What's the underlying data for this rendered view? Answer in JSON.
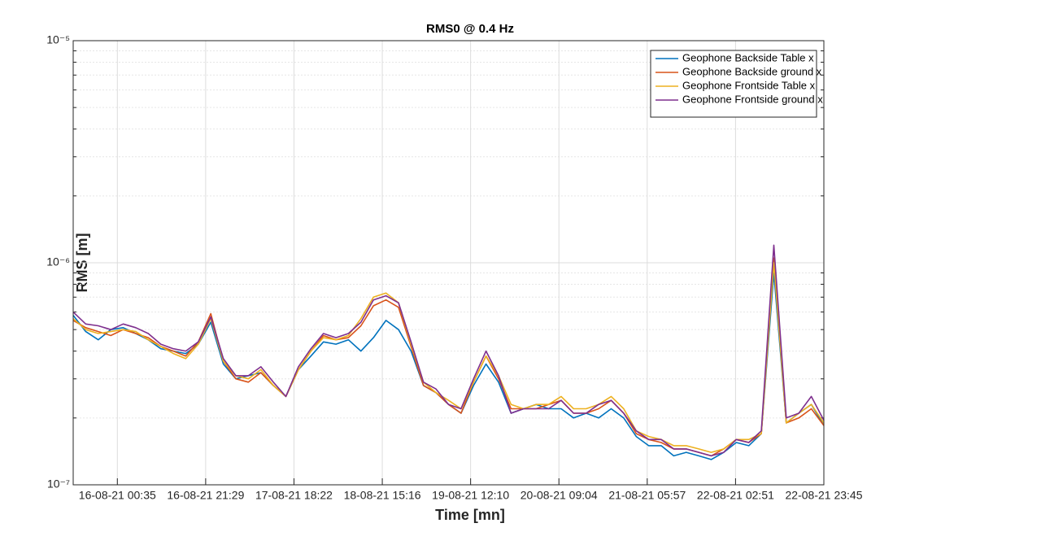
{
  "chart_data": {
    "type": "line",
    "title": "RMS0 @ 0.4 Hz",
    "xlabel": "Time [mn]",
    "ylabel": "RMS [m]",
    "ylog": true,
    "grid": true,
    "minor_grid": true,
    "legend": "upper right",
    "xlim": [
      -0.5,
      8
    ],
    "xticks": [
      {
        "value": 0,
        "label": "16-08-21 00:35"
      },
      {
        "value": 1,
        "label": "16-08-21 21:29"
      },
      {
        "value": 2,
        "label": "17-08-21 18:22"
      },
      {
        "value": 3,
        "label": "18-08-21 15:16"
      },
      {
        "value": 4,
        "label": "19-08-21 12:10"
      },
      {
        "value": 5,
        "label": "20-08-21 09:04"
      },
      {
        "value": 6,
        "label": "21-08-21 05:57"
      },
      {
        "value": 7,
        "label": "22-08-21 02:51"
      },
      {
        "value": 8,
        "label": "22-08-21 23:45"
      }
    ],
    "ylim": [
      1e-07,
      1e-05
    ],
    "yticks": [
      {
        "value": 1e-07,
        "label": "10⁻⁷"
      },
      {
        "value": 1e-06,
        "label": "10⁻⁶"
      },
      {
        "value": 1e-05,
        "label": "10⁻⁵"
      }
    ],
    "series": [
      {
        "name": "Geophone Backside Table x",
        "color": "#0072bd",
        "values": [
          5.8e-07,
          4.9e-07,
          4.5e-07,
          5e-07,
          5.1e-07,
          4.8e-07,
          4.5e-07,
          4.1e-07,
          4e-07,
          3.9e-07,
          4.3e-07,
          5.4e-07,
          3.5e-07,
          3e-07,
          3.1e-07,
          3.2e-07,
          2.8e-07,
          2.5e-07,
          3.3e-07,
          3.8e-07,
          4.4e-07,
          4.3e-07,
          4.5e-07,
          4e-07,
          4.6e-07,
          5.5e-07,
          5e-07,
          4e-07,
          2.8e-07,
          2.6e-07,
          2.3e-07,
          2.1e-07,
          2.8e-07,
          3.5e-07,
          2.9e-07,
          2.1e-07,
          2.2e-07,
          2.3e-07,
          2.2e-07,
          2.2e-07,
          2e-07,
          2.1e-07,
          2e-07,
          2.2e-07,
          2e-07,
          1.65e-07,
          1.5e-07,
          1.5e-07,
          1.35e-07,
          1.4e-07,
          1.35e-07,
          1.3e-07,
          1.4e-07,
          1.55e-07,
          1.5e-07,
          1.7e-07,
          9e-07,
          1.9e-07,
          2.1e-07,
          2.3e-07,
          1.85e-07
        ]
      },
      {
        "name": "Geophone Backside ground x",
        "color": "#d95319",
        "values": [
          5.5e-07,
          5.1e-07,
          4.9e-07,
          4.7e-07,
          5e-07,
          4.8e-07,
          4.6e-07,
          4.2e-07,
          4e-07,
          3.8e-07,
          4.4e-07,
          5.9e-07,
          3.6e-07,
          3e-07,
          2.9e-07,
          3.2e-07,
          2.8e-07,
          2.5e-07,
          3.3e-07,
          4e-07,
          4.7e-07,
          4.5e-07,
          4.6e-07,
          5.2e-07,
          6.4e-07,
          6.8e-07,
          6.3e-07,
          4.2e-07,
          2.8e-07,
          2.6e-07,
          2.3e-07,
          2.1e-07,
          2.9e-07,
          3.8e-07,
          3e-07,
          2.2e-07,
          2.2e-07,
          2.2e-07,
          2.3e-07,
          2.4e-07,
          2.1e-07,
          2.1e-07,
          2.2e-07,
          2.4e-07,
          2.1e-07,
          1.7e-07,
          1.6e-07,
          1.55e-07,
          1.45e-07,
          1.45e-07,
          1.4e-07,
          1.35e-07,
          1.45e-07,
          1.6e-07,
          1.55e-07,
          1.7e-07,
          1.05e-06,
          1.9e-07,
          2e-07,
          2.2e-07,
          1.85e-07
        ]
      },
      {
        "name": "Geophone Frontside Table x",
        "color": "#edb120",
        "values": [
          5.6e-07,
          5e-07,
          4.8e-07,
          4.9e-07,
          5e-07,
          4.9e-07,
          4.5e-07,
          4.2e-07,
          3.9e-07,
          3.7e-07,
          4.3e-07,
          5.6e-07,
          3.6e-07,
          3.1e-07,
          3e-07,
          3.3e-07,
          2.8e-07,
          2.5e-07,
          3.3e-07,
          4e-07,
          4.6e-07,
          4.5e-07,
          4.7e-07,
          5.6e-07,
          7e-07,
          7.3e-07,
          6.6e-07,
          4.3e-07,
          2.9e-07,
          2.6e-07,
          2.4e-07,
          2.2e-07,
          2.9e-07,
          3.8e-07,
          3.1e-07,
          2.3e-07,
          2.2e-07,
          2.3e-07,
          2.3e-07,
          2.5e-07,
          2.2e-07,
          2.2e-07,
          2.3e-07,
          2.5e-07,
          2.2e-07,
          1.75e-07,
          1.65e-07,
          1.6e-07,
          1.5e-07,
          1.5e-07,
          1.45e-07,
          1.4e-07,
          1.45e-07,
          1.6e-07,
          1.6e-07,
          1.7e-07,
          1e-06,
          1.9e-07,
          2.1e-07,
          2.3e-07,
          1.9e-07
        ]
      },
      {
        "name": "Geophone Frontside ground x",
        "color": "#7e2f8e",
        "values": [
          6e-07,
          5.3e-07,
          5.2e-07,
          5e-07,
          5.3e-07,
          5.1e-07,
          4.8e-07,
          4.3e-07,
          4.1e-07,
          4e-07,
          4.4e-07,
          5.7e-07,
          3.7e-07,
          3.1e-07,
          3.1e-07,
          3.4e-07,
          2.9e-07,
          2.5e-07,
          3.4e-07,
          4.1e-07,
          4.8e-07,
          4.6e-07,
          4.8e-07,
          5.4e-07,
          6.8e-07,
          7.1e-07,
          6.6e-07,
          4.4e-07,
          2.9e-07,
          2.7e-07,
          2.3e-07,
          2.2e-07,
          3e-07,
          4e-07,
          3.1e-07,
          2.1e-07,
          2.2e-07,
          2.2e-07,
          2.2e-07,
          2.4e-07,
          2.1e-07,
          2.1e-07,
          2.3e-07,
          2.4e-07,
          2.1e-07,
          1.75e-07,
          1.6e-07,
          1.6e-07,
          1.45e-07,
          1.45e-07,
          1.4e-07,
          1.35e-07,
          1.4e-07,
          1.6e-07,
          1.55e-07,
          1.75e-07,
          1.2e-06,
          2e-07,
          2.1e-07,
          2.5e-07,
          1.95e-07
        ]
      }
    ]
  }
}
